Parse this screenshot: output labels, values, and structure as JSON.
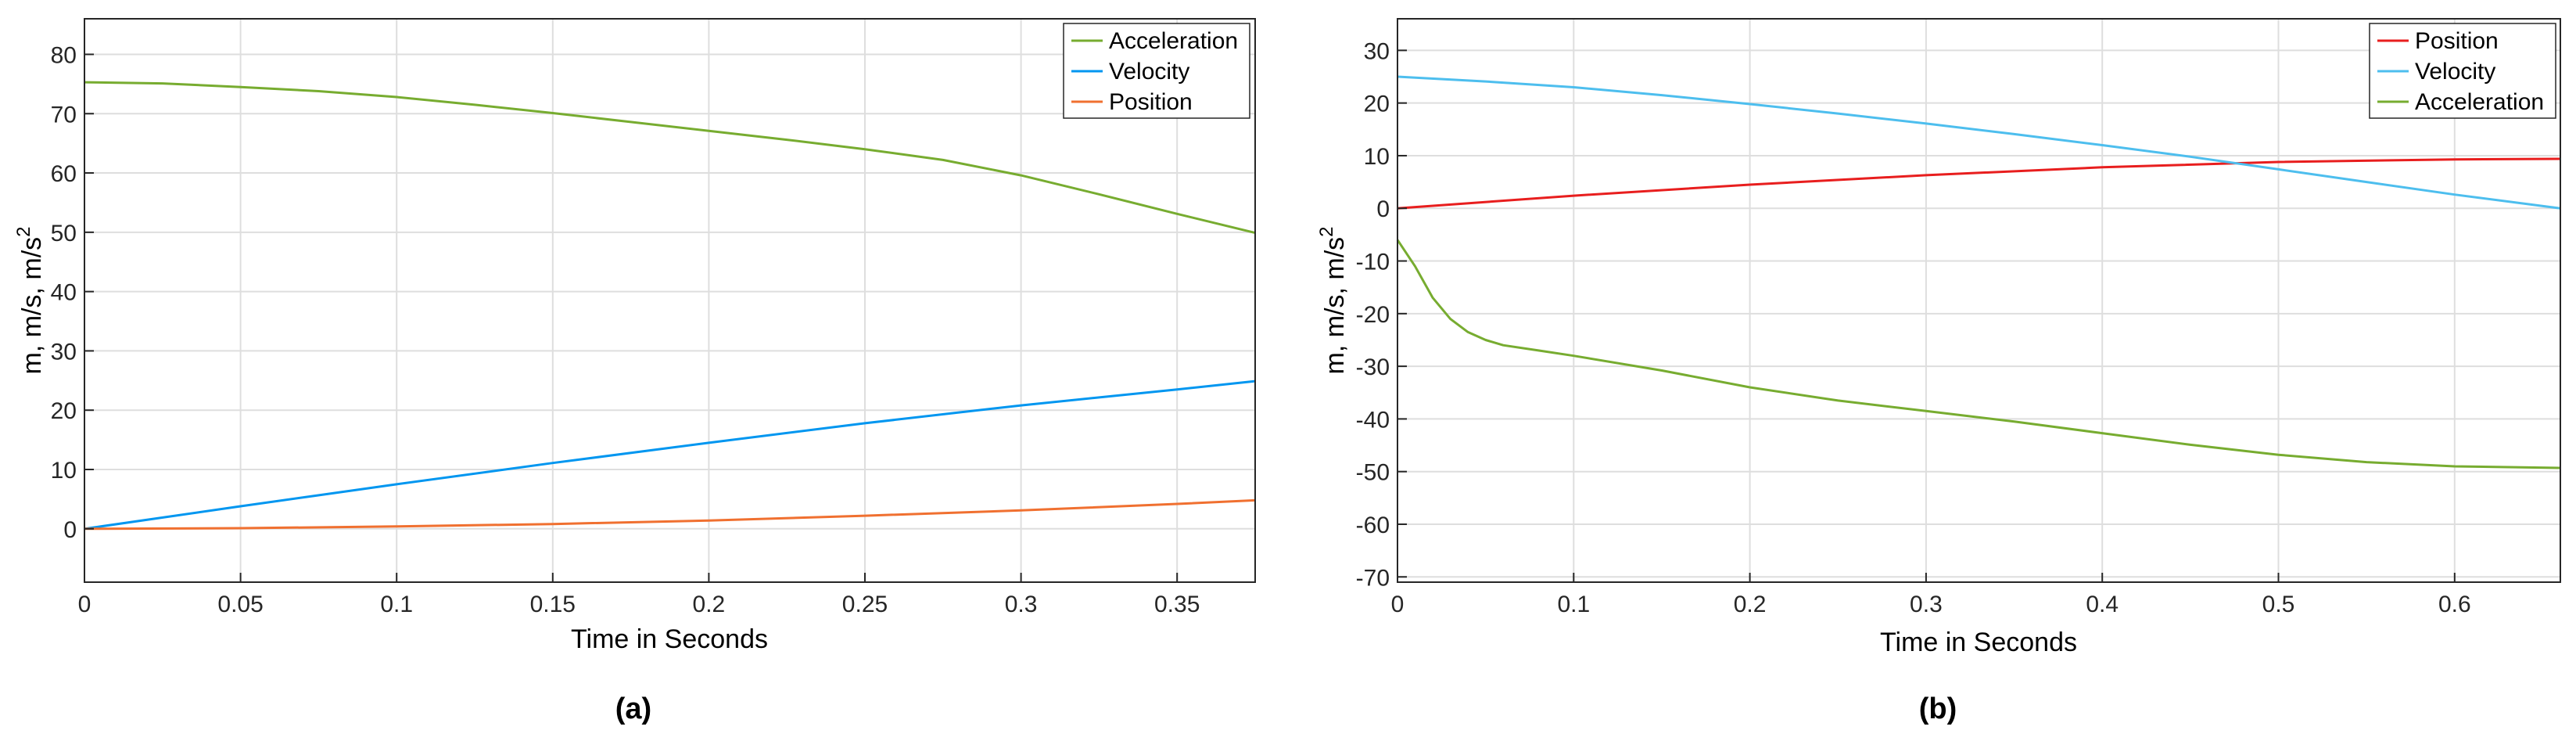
{
  "chart_data": [
    {
      "type": "line",
      "panel_label": "(a)",
      "xlabel": "Time in Seconds",
      "ylabel": "m, m/s, m/s",
      "ylabel_sup": "2",
      "xlim": [
        0,
        0.375
      ],
      "ylim": [
        -9,
        86
      ],
      "xticks": [
        0,
        0.05,
        0.1,
        0.15,
        0.2,
        0.25,
        0.3,
        0.35
      ],
      "xtick_labels": [
        "0",
        "0.05",
        "0.1",
        "0.15",
        "0.2",
        "0.25",
        "0.3",
        "0.35"
      ],
      "yticks": [
        0,
        10,
        20,
        30,
        40,
        50,
        60,
        70,
        80
      ],
      "ytick_labels": [
        "0",
        "10",
        "20",
        "30",
        "40",
        "50",
        "60",
        "70",
        "80"
      ],
      "grid": true,
      "legend_position": "top-right",
      "series": [
        {
          "name": "Acceleration",
          "color": "#77AC30",
          "x": [
            0,
            0.025,
            0.05,
            0.075,
            0.1,
            0.125,
            0.15,
            0.175,
            0.2,
            0.225,
            0.25,
            0.275,
            0.3,
            0.325,
            0.35,
            0.375
          ],
          "y": [
            75.3,
            75.1,
            74.5,
            73.8,
            72.8,
            71.5,
            70.1,
            68.6,
            67.1,
            65.6,
            64.0,
            62.2,
            59.6,
            56.4,
            53.1,
            49.9
          ]
        },
        {
          "name": "Velocity",
          "color": "#0096F0",
          "x": [
            0,
            0.05,
            0.1,
            0.15,
            0.2,
            0.25,
            0.3,
            0.35,
            0.375
          ],
          "y": [
            0,
            3.8,
            7.5,
            11.1,
            14.5,
            17.8,
            20.8,
            23.5,
            24.9
          ]
        },
        {
          "name": "Position",
          "color": "#F07030",
          "x": [
            0,
            0.05,
            0.1,
            0.15,
            0.2,
            0.25,
            0.3,
            0.35,
            0.375
          ],
          "y": [
            0,
            0.1,
            0.4,
            0.8,
            1.4,
            2.2,
            3.1,
            4.2,
            4.8
          ]
        }
      ]
    },
    {
      "type": "line",
      "panel_label": "(b)",
      "xlabel": "Time in Seconds",
      "ylabel": "m, m/s, m/s",
      "ylabel_sup": "2",
      "xlim": [
        0,
        0.66
      ],
      "ylim": [
        -71,
        36
      ],
      "xticks": [
        0,
        0.1,
        0.2,
        0.3,
        0.4,
        0.5,
        0.6
      ],
      "xtick_labels": [
        "0",
        "0.1",
        "0.2",
        "0.3",
        "0.4",
        "0.5",
        "0.6"
      ],
      "yticks": [
        -70,
        -60,
        -50,
        -40,
        -30,
        -20,
        -10,
        0,
        10,
        20,
        30
      ],
      "ytick_labels": [
        "-70",
        "-60",
        "-50",
        "-40",
        "-30",
        "-20",
        "-10",
        "0",
        "10",
        "20",
        "30"
      ],
      "grid": true,
      "legend_position": "top-right",
      "series": [
        {
          "name": "Position",
          "color": "#E81E1E",
          "x": [
            0,
            0.1,
            0.2,
            0.3,
            0.4,
            0.5,
            0.6,
            0.66
          ],
          "y": [
            0,
            2.4,
            4.5,
            6.3,
            7.8,
            8.8,
            9.3,
            9.4
          ]
        },
        {
          "name": "Velocity",
          "color": "#4DBEEE",
          "x": [
            0,
            0.05,
            0.1,
            0.15,
            0.2,
            0.25,
            0.3,
            0.35,
            0.4,
            0.45,
            0.5,
            0.55,
            0.6,
            0.66
          ],
          "y": [
            25,
            24.1,
            23,
            21.5,
            19.8,
            18,
            16.1,
            14.1,
            12,
            9.8,
            7.4,
            5.0,
            2.6,
            0
          ]
        },
        {
          "name": "Acceleration",
          "color": "#77AC30",
          "x": [
            0,
            0.01,
            0.02,
            0.03,
            0.04,
            0.05,
            0.06,
            0.08,
            0.1,
            0.15,
            0.2,
            0.25,
            0.3,
            0.35,
            0.4,
            0.45,
            0.5,
            0.55,
            0.6,
            0.66
          ],
          "y": [
            -6,
            -11,
            -17,
            -21,
            -23.5,
            -25,
            -26,
            -27,
            -28,
            -30.8,
            -34,
            -36.5,
            -38.5,
            -40.5,
            -42.7,
            -44.9,
            -46.8,
            -48.2,
            -49,
            -49.3
          ]
        }
      ]
    }
  ]
}
